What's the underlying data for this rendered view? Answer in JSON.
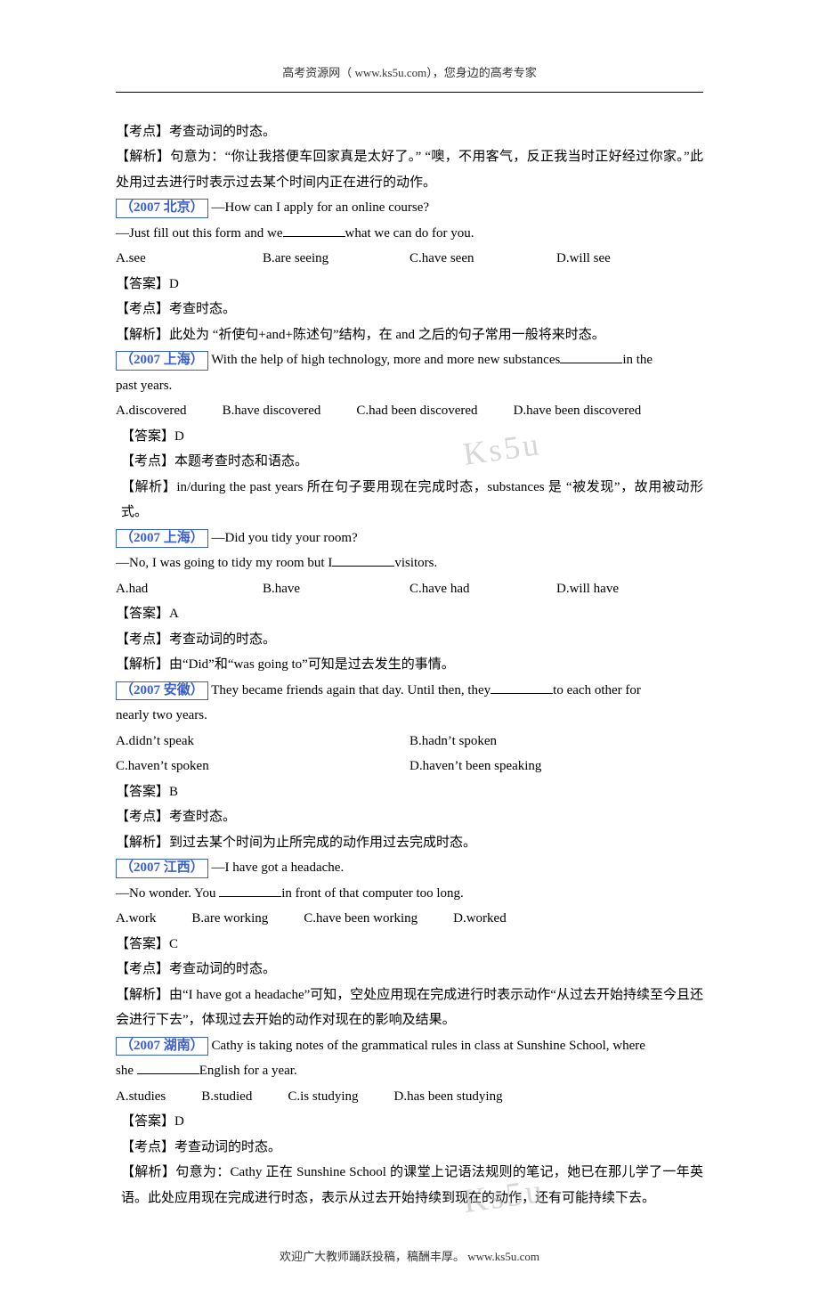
{
  "header": "高考资源网（ www.ks5u.com），您身边的高考专家",
  "footer": "欢迎广大教师踊跃投稿，稿酬丰厚。  www.ks5u.com",
  "watermark": "Ks5u",
  "colors": {
    "tag_border": "#3b5fc9",
    "tag_text": "#3b5fc9",
    "text": "#000000",
    "bg": "#ffffff",
    "grey": "#b8b8b8"
  },
  "intro": {
    "kd": "【考点】考查动词的时态。",
    "jx": "【解析】句意为：“你让我搭便车回家真是太好了。” “噢，不用客气，反正我当时正好经过你家。”此处用过去进行时表示过去某个时间内正在进行的动作。"
  },
  "questions": [
    {
      "tag": "（2007 北京）",
      "stem1": "—How can I apply for an online course?",
      "stem2_pre": "—Just fill out this form and we",
      "stem2_post": "what we can do for you.",
      "choices": [
        "A.see",
        "B.are seeing",
        "C.have seen",
        "D.will see"
      ],
      "cols": "cols4",
      "da": "【答案】D",
      "kd": "【考点】考查时态。",
      "jx": "【解析】此处为 “祈使句+and+陈述句”结构，在 and 之后的句子常用一般将来时态。"
    },
    {
      "tag": "（2007 上海）",
      "stem1_pre": "With the help of high technology, more and more new substances",
      "stem1_post": "in the",
      "stem1_tail": "past years.",
      "choices": [
        "A.discovered",
        "B.have discovered",
        "C.had been discovered",
        "D.have been discovered"
      ],
      "cols": "custom",
      "da": "【答案】D",
      "kd": "【考点】本题考查时态和语态。",
      "jx": "【解析】in/during the past years 所在句子要用现在完成时态，substances 是 “被发现”，故用被动形式。"
    },
    {
      "tag": "（2007 上海）",
      "stem1": "—Did you tidy your room?",
      "stem2_pre": "—No, I was going to tidy my room but I",
      "stem2_post": "visitors.",
      "choices": [
        "A.had",
        "B.have",
        "C.have had",
        "D.will have"
      ],
      "cols": "cols4",
      "da": "【答案】A",
      "kd": "【考点】考查动词的时态。",
      "jx": "【解析】由“Did”和“was going to”可知是过去发生的事情。"
    },
    {
      "tag": "（2007 安徽）",
      "stem1_pre": "They became friends again that day. Until then, they",
      "stem1_post": "to each other for",
      "stem1_tail": "nearly two years.",
      "choices": [
        "A.didn’t speak",
        "B.hadn’t spoken",
        "C.haven’t spoken",
        "D.haven’t been speaking"
      ],
      "cols": "cols2",
      "da": "【答案】B",
      "kd": "【考点】考查时态。",
      "jx": "【解析】到过去某个时间为止所完成的动作用过去完成时态。"
    },
    {
      "tag": "（2007 江西）",
      "stem1": "—I have got a headache.",
      "stem2_pre": "—No wonder. You ",
      "stem2_post": "in front of that computer too long.",
      "choices": [
        "A.work",
        "B.are working",
        "C.have been working",
        "D.worked"
      ],
      "cols": "custom",
      "da": "【答案】C",
      "kd": "【考点】考查动词的时态。",
      "jx": "【解析】由“I have got a headache”可知，空处应用现在完成进行时表示动作“从过去开始持续至今且还会进行下去”，体现过去开始的动作对现在的影响及结果。"
    },
    {
      "tag": "（2007 湖南）",
      "stem1_pre": "Cathy is taking notes of the grammatical rules in class at Sunshine School, where",
      "stem2_pre": "she ",
      "stem2_post": "English for a year.",
      "choices": [
        "A.studies",
        "B.studied",
        "C.is studying",
        "D.has been studying"
      ],
      "cols": "custom",
      "da": "【答案】D",
      "kd": "【考点】考查动词的时态。",
      "jx": "【解析】句意为：Cathy 正在 Sunshine School 的课堂上记语法规则的笔记，她已在那儿学了一年英语。此处应用现在完成进行时态，表示从过去开始持续到现在的动作，还有可能持续下去。"
    }
  ]
}
